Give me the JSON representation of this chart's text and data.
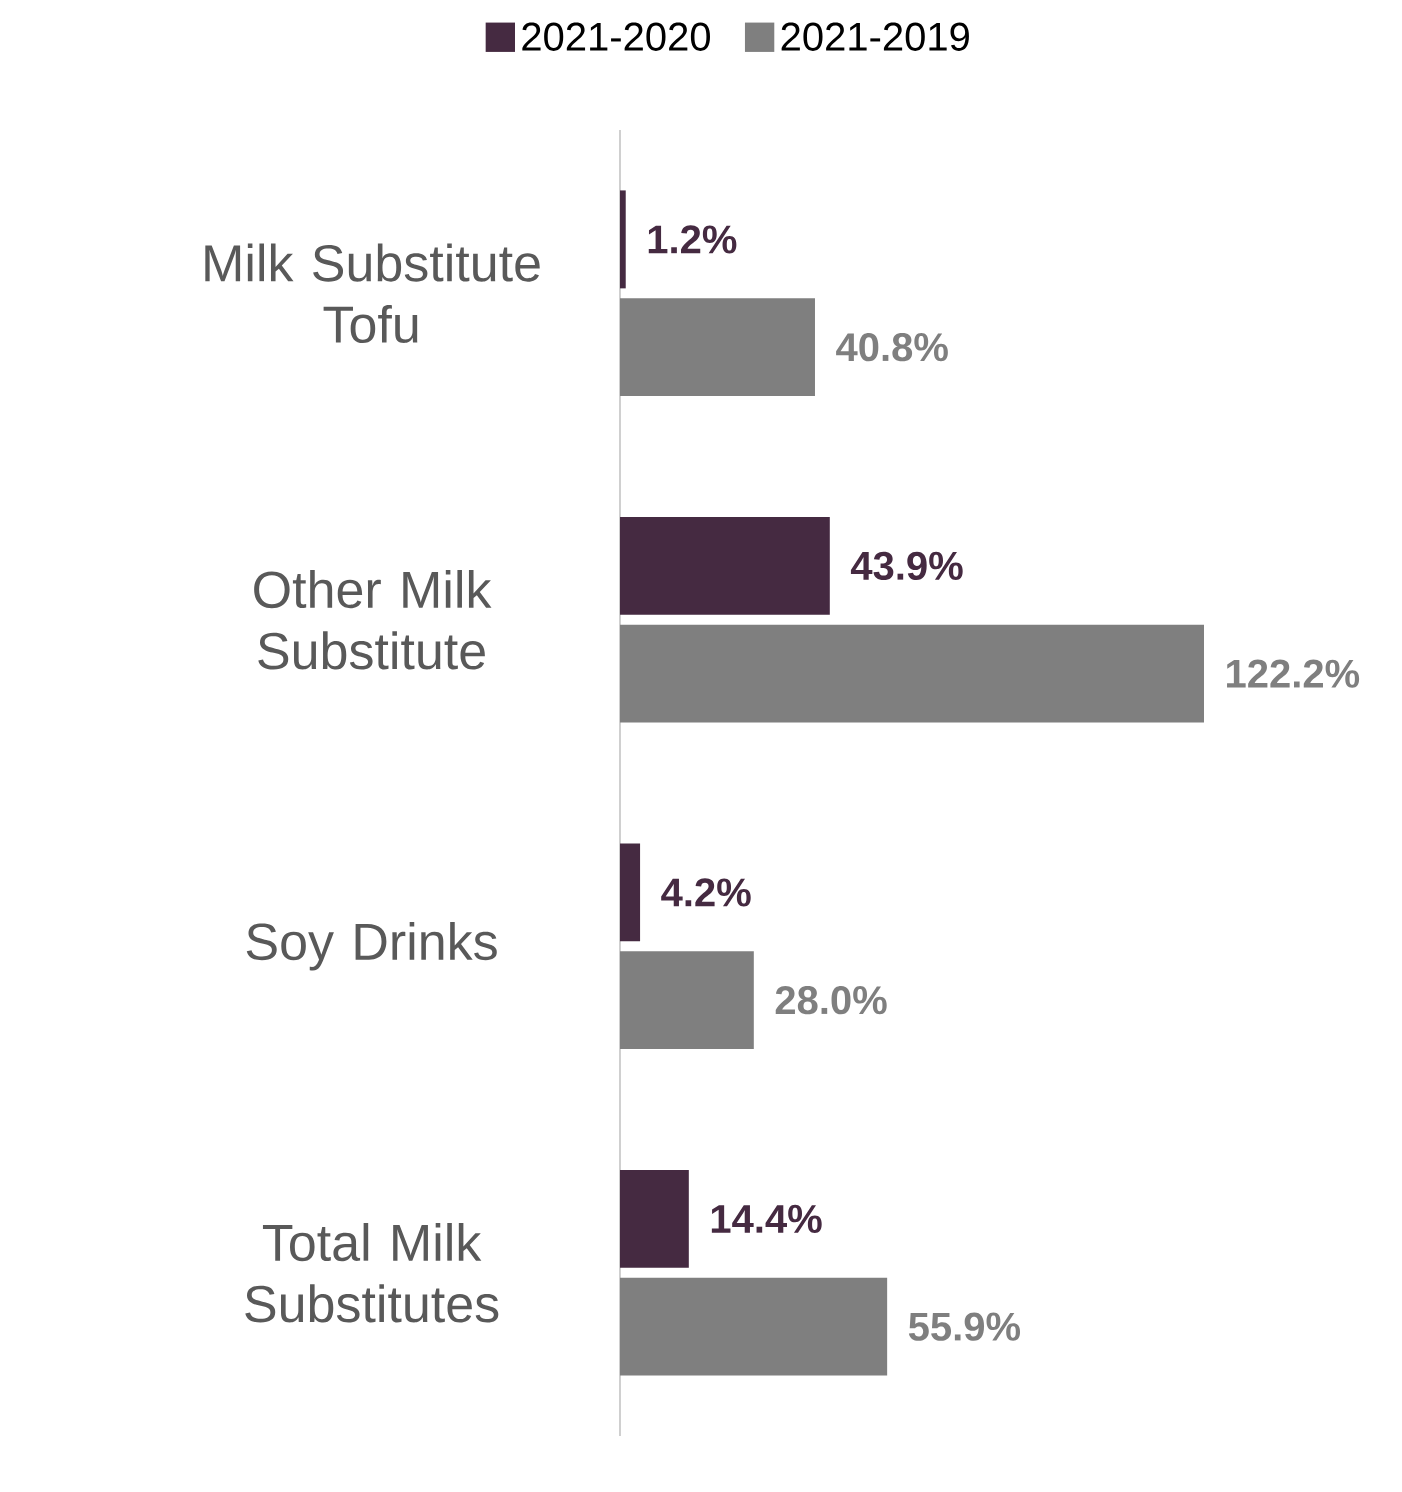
{
  "chart_data": {
    "type": "bar",
    "orientation": "horizontal",
    "categories": [
      "Milk Substitute Tofu",
      "Other Milk Substitute",
      "Soy Drinks",
      "Total Milk Substitutes"
    ],
    "series": [
      {
        "name": "2021-2020",
        "color": "#452a41",
        "values": [
          1.2,
          43.9,
          4.2,
          14.4
        ],
        "value_labels": [
          "1.2%",
          "43.9%",
          "4.2%",
          "14.4%"
        ]
      },
      {
        "name": "2021-2019",
        "color": "#7f7f7f",
        "values": [
          40.8,
          122.2,
          28.0,
          55.9
        ],
        "value_labels": [
          "40.8%",
          "122.2%",
          "28.0%",
          "55.9%"
        ]
      }
    ],
    "xlim": [
      0,
      122.2
    ],
    "legend": "top"
  }
}
